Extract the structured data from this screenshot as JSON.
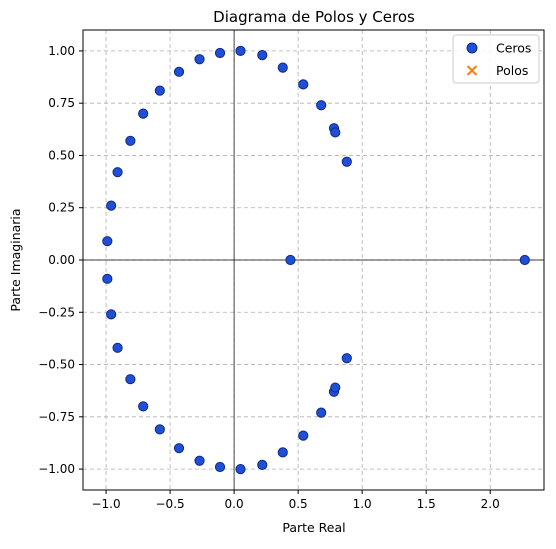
{
  "chart_data": {
    "type": "scatter",
    "title": "Diagrama de Polos y Ceros",
    "xlabel": "Parte Real",
    "ylabel": "Parte Imaginaria",
    "xlim": [
      -1.18,
      2.42
    ],
    "ylim": [
      -1.1,
      1.1
    ],
    "x_ticks": [
      -1.0,
      -0.5,
      0.0,
      0.5,
      1.0,
      1.5,
      2.0
    ],
    "x_tick_labels": [
      "−1.0",
      "−0.5",
      "0.0",
      "0.5",
      "1.0",
      "1.5",
      "2.0"
    ],
    "y_ticks": [
      -1.0,
      -0.75,
      -0.5,
      -0.25,
      0.0,
      0.25,
      0.5,
      0.75,
      1.0
    ],
    "y_tick_labels": [
      "−1.00",
      "−0.75",
      "−0.50",
      "−0.25",
      "0.00",
      "0.25",
      "0.50",
      "0.75",
      "1.00"
    ],
    "grid": true,
    "legend_position": "top-right",
    "series": [
      {
        "name": "Ceros",
        "marker": "circle",
        "color": "#1f4fd6",
        "edge_color": "#0d2a8a",
        "points": [
          [
            0.05,
            1.0
          ],
          [
            -0.11,
            0.99
          ],
          [
            -0.27,
            0.96
          ],
          [
            -0.43,
            0.9
          ],
          [
            -0.58,
            0.81
          ],
          [
            -0.71,
            0.7
          ],
          [
            -0.81,
            0.57
          ],
          [
            -0.91,
            0.42
          ],
          [
            -0.96,
            0.26
          ],
          [
            -0.99,
            0.09
          ],
          [
            -0.99,
            -0.09
          ],
          [
            -0.96,
            -0.26
          ],
          [
            -0.91,
            -0.42
          ],
          [
            -0.81,
            -0.57
          ],
          [
            -0.71,
            -0.7
          ],
          [
            -0.58,
            -0.81
          ],
          [
            -0.43,
            -0.9
          ],
          [
            -0.27,
            -0.96
          ],
          [
            -0.11,
            -0.99
          ],
          [
            0.05,
            -1.0
          ],
          [
            0.22,
            0.98
          ],
          [
            0.38,
            0.92
          ],
          [
            0.54,
            0.84
          ],
          [
            0.68,
            0.74
          ],
          [
            0.78,
            0.63
          ],
          [
            0.79,
            0.61
          ],
          [
            0.88,
            0.47
          ],
          [
            0.44,
            0.0
          ],
          [
            2.27,
            0.0
          ],
          [
            0.22,
            -0.98
          ],
          [
            0.38,
            -0.92
          ],
          [
            0.54,
            -0.84
          ],
          [
            0.68,
            -0.73
          ],
          [
            0.78,
            -0.63
          ],
          [
            0.79,
            -0.61
          ],
          [
            0.88,
            -0.47
          ]
        ]
      },
      {
        "name": "Polos",
        "marker": "x",
        "color": "#ff7f0e",
        "points": []
      }
    ]
  }
}
